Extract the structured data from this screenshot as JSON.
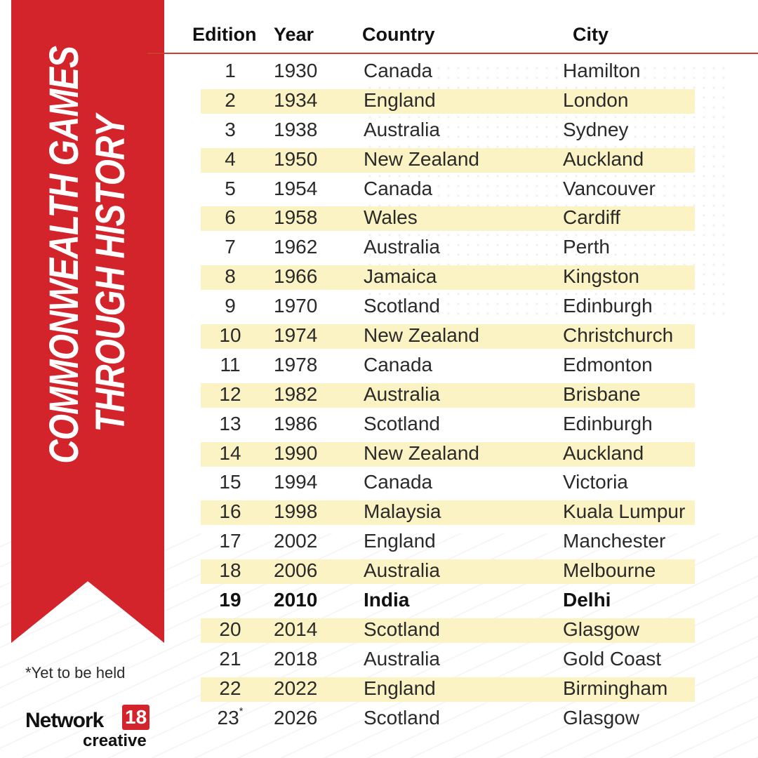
{
  "title": "COMMONWEALTH GAMES THROUGH HISTORY",
  "title_lines": [
    "COMMONWEALTH GAMES",
    "THROUGH HISTORY"
  ],
  "accent_color": "#d3232b",
  "row_highlight_color": "#fbf3c3",
  "table": {
    "headers": [
      "Edition",
      "Year",
      "Country",
      "City"
    ],
    "rows": [
      {
        "edition": "1",
        "year": "1930",
        "country": "Canada",
        "city": "Hamilton"
      },
      {
        "edition": "2",
        "year": "1934",
        "country": "England",
        "city": "London"
      },
      {
        "edition": "3",
        "year": "1938",
        "country": "Australia",
        "city": "Sydney"
      },
      {
        "edition": "4",
        "year": "1950",
        "country": "New Zealand",
        "city": "Auckland"
      },
      {
        "edition": "5",
        "year": "1954",
        "country": "Canada",
        "city": "Vancouver"
      },
      {
        "edition": "6",
        "year": "1958",
        "country": "Wales",
        "city": "Cardiff"
      },
      {
        "edition": "7",
        "year": "1962",
        "country": "Australia",
        "city": "Perth"
      },
      {
        "edition": "8",
        "year": "1966",
        "country": "Jamaica",
        "city": "Kingston"
      },
      {
        "edition": "9",
        "year": "1970",
        "country": "Scotland",
        "city": "Edinburgh"
      },
      {
        "edition": "10",
        "year": "1974",
        "country": "New Zealand",
        "city": "Christchurch"
      },
      {
        "edition": "11",
        "year": "1978",
        "country": "Canada",
        "city": "Edmonton"
      },
      {
        "edition": "12",
        "year": "1982",
        "country": "Australia",
        "city": "Brisbane"
      },
      {
        "edition": "13",
        "year": "1986",
        "country": "Scotland",
        "city": "Edinburgh"
      },
      {
        "edition": "14",
        "year": "1990",
        "country": "New Zealand",
        "city": "Auckland"
      },
      {
        "edition": "15",
        "year": "1994",
        "country": "Canada",
        "city": "Victoria"
      },
      {
        "edition": "16",
        "year": "1998",
        "country": "Malaysia",
        "city": "Kuala Lumpur"
      },
      {
        "edition": "17",
        "year": "2002",
        "country": "England",
        "city": "Manchester"
      },
      {
        "edition": "18",
        "year": "2006",
        "country": "Australia",
        "city": "Melbourne"
      },
      {
        "edition": "19",
        "year": "2010",
        "country": "India",
        "city": "Delhi",
        "emphasis": true
      },
      {
        "edition": "20",
        "year": "2014",
        "country": "Scotland",
        "city": "Glasgow"
      },
      {
        "edition": "21",
        "year": "2018",
        "country": "Australia",
        "city": "Gold Coast"
      },
      {
        "edition": "22",
        "year": "2022",
        "country": "England",
        "city": "Birmingham"
      },
      {
        "edition": "23",
        "edition_mark": "*",
        "year": "2026",
        "country": "Scotland",
        "city": "Glasgow"
      }
    ]
  },
  "footnote": "*Yet to be held",
  "logo": {
    "word": "Network",
    "number": "18",
    "sub": "creative"
  }
}
